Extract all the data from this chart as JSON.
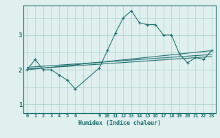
{
  "xlabel": "Humidex (Indice chaleur)",
  "bg_color": "#dff0ef",
  "grid_color": "#aececa",
  "line_color": "#1a6b6b",
  "xlim": [
    -0.5,
    23.5
  ],
  "ylim": [
    0.75,
    3.85
  ],
  "yticks": [
    1,
    2,
    3
  ],
  "xticks": [
    0,
    1,
    2,
    3,
    4,
    5,
    6,
    9,
    10,
    11,
    12,
    13,
    14,
    15,
    16,
    17,
    18,
    19,
    20,
    21,
    22,
    23
  ],
  "line1_x": [
    0,
    1,
    2,
    3,
    4,
    5,
    6,
    9,
    10,
    11,
    12,
    13,
    14,
    15,
    16,
    17,
    18,
    19,
    20,
    21,
    22,
    23
  ],
  "line1_y": [
    2.0,
    2.3,
    2.0,
    2.0,
    1.85,
    1.7,
    1.45,
    2.05,
    2.55,
    3.05,
    3.5,
    3.7,
    3.35,
    3.3,
    3.3,
    3.0,
    3.0,
    2.45,
    2.2,
    2.35,
    2.3,
    2.55
  ],
  "line2_x": [
    0,
    23
  ],
  "line2_y": [
    2.0,
    2.55
  ],
  "line3_x": [
    0,
    23
  ],
  "line3_y": [
    2.07,
    2.44
  ],
  "line4_x": [
    0,
    23
  ],
  "line4_y": [
    2.02,
    2.38
  ]
}
